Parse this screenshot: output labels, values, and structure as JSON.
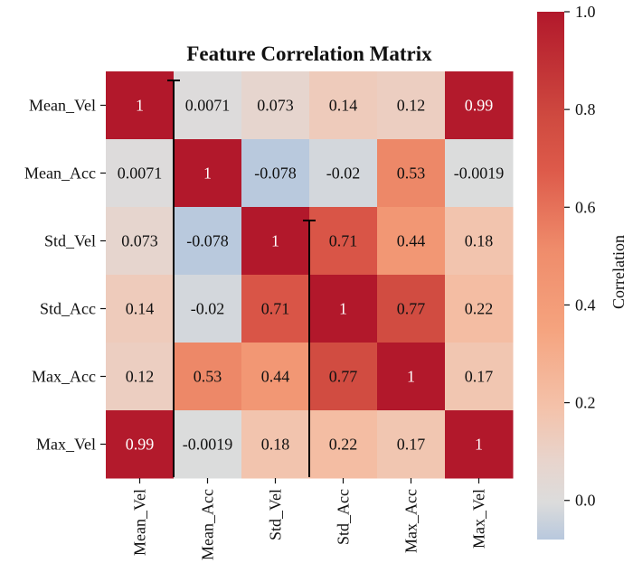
{
  "chart_data": {
    "type": "heatmap",
    "title": "Feature Correlation Matrix",
    "labels": [
      "Mean_Vel",
      "Mean_Acc",
      "Std_Vel",
      "Std_Acc",
      "Max_Acc",
      "Max_Vel"
    ],
    "matrix": [
      [
        1,
        0.0071,
        0.073,
        0.14,
        0.12,
        0.99
      ],
      [
        0.0071,
        1,
        -0.078,
        -0.02,
        0.53,
        -0.0019
      ],
      [
        0.073,
        -0.078,
        1,
        0.71,
        0.44,
        0.18
      ],
      [
        0.14,
        -0.02,
        0.71,
        1,
        0.77,
        0.22
      ],
      [
        0.12,
        0.53,
        0.44,
        0.77,
        1,
        0.17
      ],
      [
        0.99,
        -0.0019,
        0.18,
        0.22,
        0.17,
        1
      ]
    ],
    "cell_text": [
      [
        "1",
        "0.0071",
        "0.073",
        "0.14",
        "0.12",
        "0.99"
      ],
      [
        "0.0071",
        "1",
        "-0.078",
        "-0.02",
        "0.53",
        "-0.0019"
      ],
      [
        "0.073",
        "-0.078",
        "1",
        "0.71",
        "0.44",
        "0.18"
      ],
      [
        "0.14",
        "-0.02",
        "0.71",
        "1",
        "0.77",
        "0.22"
      ],
      [
        "0.12",
        "0.53",
        "0.44",
        "0.77",
        "1",
        "0.17"
      ],
      [
        "0.99",
        "-0.0019",
        "0.18",
        "0.22",
        "0.17",
        "1"
      ]
    ],
    "colorbar": {
      "label": "Correlation",
      "range": [
        -0.08,
        1.0
      ],
      "center": 0,
      "ticks": [
        0.0,
        0.2,
        0.4,
        0.6,
        0.8,
        1.0
      ],
      "tick_labels": [
        "0.0",
        "0.2",
        "0.4",
        "0.6",
        "0.8",
        "1.0"
      ],
      "colormap": "coolwarm",
      "colors": {
        "low": "#b8c8dd",
        "mid": "#dcdcdc",
        "high": "#b2182b"
      }
    }
  }
}
